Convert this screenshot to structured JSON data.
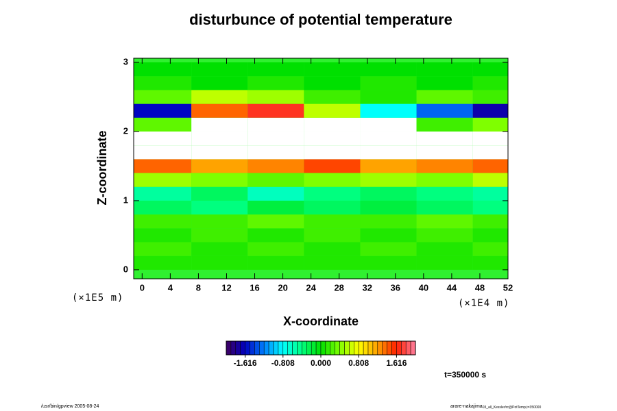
{
  "chart_data": {
    "type": "heatmap",
    "title": "disturbunce of potential temperature",
    "x_label": "X-coordinate",
    "y_label": "Z-coordinate",
    "x_unit": "(×1E4 m)",
    "y_unit": "(×1E5 m)",
    "time_label": "t=350000 s",
    "footer_left": "/usr/bin/gpview 2005-08-24",
    "footer_right": "arare-nakajima",
    "footer_right_sub": "03_all_Kessler/rc@PotTemp,t=350000",
    "xlim": [
      -1.2,
      52
    ],
    "ylim": [
      -0.13,
      3.06
    ],
    "xticks": [
      0,
      4,
      8,
      12,
      16,
      20,
      24,
      28,
      32,
      36,
      40,
      44,
      48,
      52
    ],
    "yticks": [
      0,
      1,
      2,
      3
    ],
    "x_bins": [
      -1.2,
      7,
      15,
      23,
      31,
      39,
      47,
      52
    ],
    "y_bins": [
      0,
      0.2,
      0.4,
      0.6,
      0.8,
      1.0,
      1.2,
      1.4,
      1.6,
      1.8,
      2.0,
      2.2,
      2.4,
      2.6,
      2.8,
      3.0
    ],
    "values": [
      [
        0.1,
        0.1,
        0.1,
        0.1,
        0.1,
        0.1,
        0.1
      ],
      [
        0.2,
        0.1,
        0.2,
        0.1,
        0.2,
        0.1,
        0.2
      ],
      [
        0.1,
        0.2,
        0.1,
        0.2,
        0.1,
        0.2,
        0.1
      ],
      [
        0.2,
        0.2,
        0.3,
        0.2,
        0.2,
        0.3,
        0.2
      ],
      [
        -0.3,
        -0.4,
        -0.2,
        -0.3,
        -0.2,
        -0.3,
        -0.4
      ],
      [
        -0.5,
        -0.3,
        -0.6,
        -0.4,
        -0.3,
        -0.4,
        -0.5
      ],
      [
        0.5,
        0.4,
        0.3,
        0.4,
        0.5,
        0.4,
        0.6
      ],
      [
        1.4,
        1.2,
        1.3,
        1.5,
        1.2,
        1.3,
        1.4
      ],
      [
        null,
        null,
        null,
        null,
        null,
        null,
        null
      ],
      [
        null,
        null,
        null,
        null,
        null,
        null,
        null
      ],
      [
        0.3,
        null,
        null,
        null,
        null,
        0.2,
        0.4
      ],
      [
        -1.6,
        1.4,
        1.7,
        0.6,
        -0.8,
        -1.3,
        -1.7
      ],
      [
        0.3,
        0.6,
        0.5,
        0.2,
        0.1,
        0.3,
        0.2
      ],
      [
        0.1,
        0,
        0.1,
        0,
        0.1,
        0,
        0.1
      ],
      [
        0,
        0,
        0,
        0,
        0,
        0,
        0
      ]
    ],
    "clim": [
      -2.02,
      2.02
    ],
    "cticks": [
      -1.616,
      -0.808,
      {
        "value": 0,
        "label": "0.000"
      },
      0.808,
      1.616
    ],
    "colormap": [
      "#400060",
      "#0000c0",
      "#0080ff",
      "#00ffff",
      "#00ff80",
      "#00e000",
      "#80ff00",
      "#ffff00",
      "#ffa000",
      "#ff2000",
      "#ff80a0"
    ],
    "background": "#30f030"
  }
}
